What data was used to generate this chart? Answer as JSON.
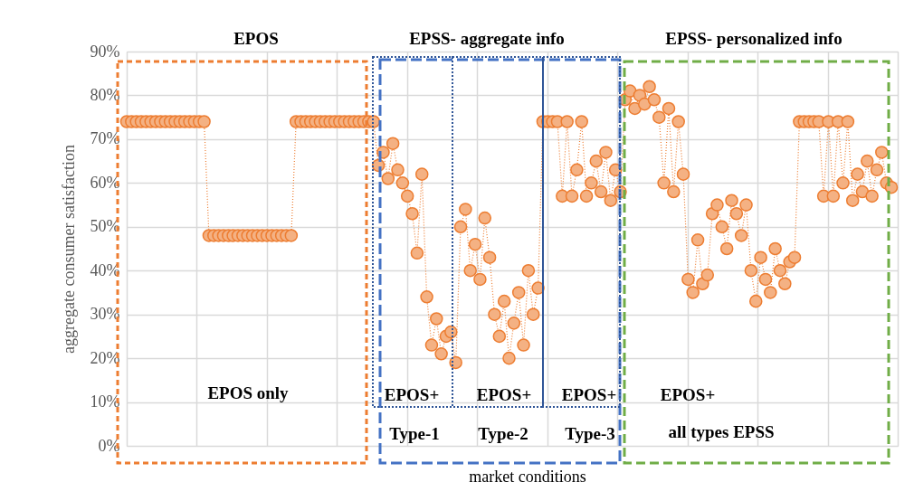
{
  "chart_data": {
    "type": "line",
    "categories": [
      null,
      null,
      null,
      null,
      null,
      null,
      null,
      null,
      null,
      null,
      null,
      null,
      null,
      null,
      null,
      null,
      null,
      null,
      null,
      null,
      null,
      null,
      null,
      null,
      null,
      null,
      null,
      null,
      null,
      null,
      null,
      null,
      null,
      null,
      null,
      null,
      null,
      null,
      null,
      null,
      null,
      null,
      null,
      null,
      null,
      null,
      null,
      null,
      null,
      null,
      null,
      null,
      null,
      null,
      null,
      null,
      null,
      null,
      null,
      null,
      null,
      null,
      null,
      null,
      null,
      null,
      null,
      null,
      null,
      null,
      null,
      null,
      null,
      null,
      null,
      null,
      null,
      null,
      null,
      null,
      null,
      null,
      null,
      null,
      null,
      null,
      null,
      null,
      null,
      null,
      null,
      null,
      null,
      null,
      null,
      null,
      null,
      null,
      null,
      null,
      null,
      null,
      null,
      null,
      null,
      null,
      null,
      null,
      null,
      null,
      null,
      null,
      null,
      null,
      null,
      null,
      null,
      null,
      null,
      null,
      null,
      null,
      null,
      null,
      null,
      null,
      null,
      null,
      null,
      null,
      null,
      null,
      null,
      null,
      null,
      null,
      null,
      null,
      null,
      null,
      null,
      null,
      null,
      null,
      null,
      null,
      null,
      null,
      null,
      null,
      null,
      null,
      null,
      null,
      null,
      null,
      null,
      null,
      null
    ],
    "series": [
      {
        "color": "#ed7d31",
        "values": [
          74,
          74,
          74,
          74,
          74,
          74,
          74,
          74,
          74,
          74,
          74,
          74,
          74,
          74,
          74,
          74,
          74,
          48,
          48,
          48,
          48,
          48,
          48,
          48,
          48,
          48,
          48,
          48,
          48,
          48,
          48,
          48,
          48,
          48,
          48,
          74,
          74,
          74,
          74,
          74,
          74,
          74,
          74,
          74,
          74,
          74,
          74,
          74,
          74,
          74,
          74,
          74,
          64,
          67,
          61,
          69,
          63,
          60,
          57,
          53,
          44,
          62,
          34,
          23,
          29,
          21,
          25,
          26,
          19,
          50,
          54,
          40,
          46,
          38,
          52,
          43,
          30,
          25,
          33,
          20,
          28,
          35,
          23,
          40,
          30,
          36,
          74,
          74,
          74,
          74,
          57,
          74,
          57,
          63,
          74,
          57,
          60,
          65,
          58,
          67,
          56,
          63,
          58,
          79,
          81,
          77,
          80,
          78,
          82,
          79,
          75,
          60,
          77,
          58,
          74,
          62,
          38,
          35,
          47,
          37,
          39,
          53,
          55,
          50,
          45,
          56,
          53,
          48,
          55,
          40,
          33,
          43,
          38,
          35,
          45,
          40,
          37,
          42,
          43,
          74,
          74,
          74,
          74,
          74,
          57,
          74,
          57,
          74,
          60,
          74,
          56,
          62,
          58,
          65,
          57,
          63,
          67,
          60,
          59
        ]
      }
    ],
    "ylabel": "aggregate consumer satisfaction",
    "xlabel": "market conditions",
    "ylim": [
      0,
      90
    ],
    "yticks": [
      {
        "value": 0,
        "label": "0%"
      },
      {
        "value": 10,
        "label": "10%"
      },
      {
        "value": 20,
        "label": "20%"
      },
      {
        "value": 30,
        "label": "30%"
      },
      {
        "value": 40,
        "label": "40%"
      },
      {
        "value": 50,
        "label": "50%"
      },
      {
        "value": 60,
        "label": "60%"
      },
      {
        "value": 70,
        "label": "70%"
      },
      {
        "value": 80,
        "label": "80%"
      },
      {
        "value": 90,
        "label": "90%"
      }
    ],
    "grid": true,
    "marker": "circle",
    "line_style": "dotted",
    "tick_labels": "y",
    "annotations": [
      "EPOS",
      "EPSS- aggregate info",
      "EPSS- personalized info",
      "EPOS only",
      "EPOS+",
      "EPOS+",
      "EPOS+",
      "EPOS+",
      "Type-1",
      "Type-2",
      "Type-3",
      "all types EPSS"
    ]
  }
}
